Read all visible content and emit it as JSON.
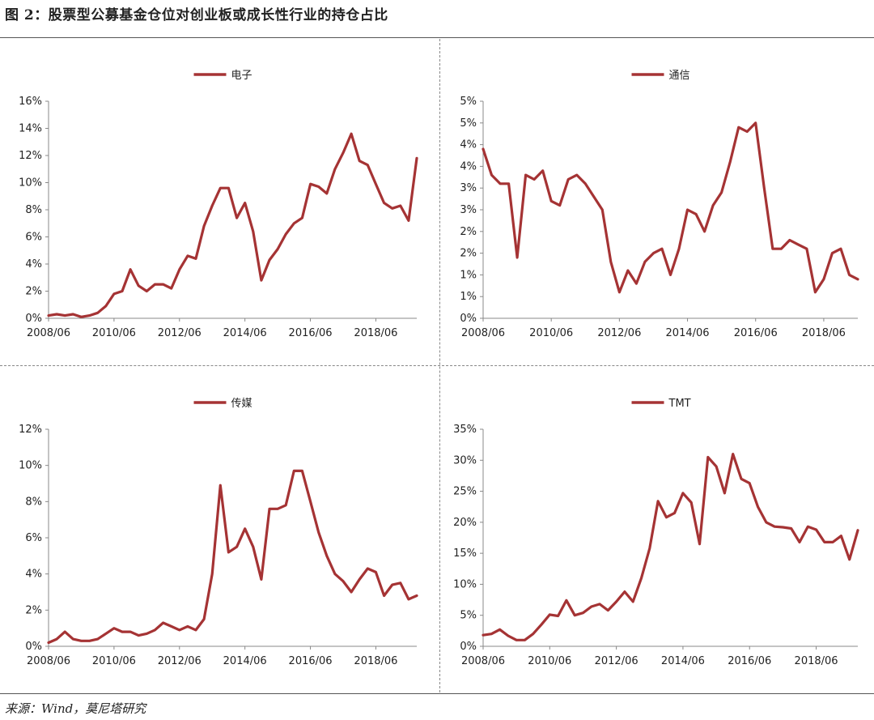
{
  "figure": {
    "title": "图 2：股票型公募基金仓位对创业板或成长性行业的持仓占比",
    "source": "来源：Wind，莫尼塔研究"
  },
  "colors": {
    "line": "#a53334",
    "axis": "#888888"
  },
  "chart_data": [
    {
      "type": "line",
      "title": "",
      "series": [
        {
          "name": "电子",
          "values": [
            0.2,
            0.3,
            0.2,
            0.3,
            0.1,
            0.2,
            0.4,
            0.9,
            1.8,
            2.0,
            3.6,
            2.4,
            2.0,
            2.5,
            2.5,
            2.2,
            3.6,
            4.6,
            4.4,
            6.8,
            8.3,
            9.6,
            9.6,
            7.4,
            8.5,
            6.4,
            2.8,
            4.3,
            5.1,
            6.2,
            7.0,
            7.4,
            9.9,
            9.7,
            9.2,
            11.0,
            12.2,
            13.6,
            11.6,
            11.3,
            9.9,
            8.5,
            8.1,
            8.3,
            7.2,
            11.8
          ]
        }
      ],
      "x": [
        "2008/06",
        "2008/09",
        "2008/12",
        "2009/03",
        "2009/06",
        "2009/09",
        "2009/12",
        "2010/03",
        "2010/06",
        "2010/09",
        "2010/12",
        "2011/03",
        "2011/06",
        "2011/09",
        "2011/12",
        "2012/03",
        "2012/06",
        "2012/09",
        "2012/12",
        "2013/03",
        "2013/06",
        "2013/09",
        "2013/12",
        "2014/03",
        "2014/06",
        "2014/09",
        "2014/12",
        "2015/03",
        "2015/06",
        "2015/09",
        "2015/12",
        "2016/03",
        "2016/06",
        "2016/09",
        "2016/12",
        "2017/03",
        "2017/06",
        "2017/09",
        "2017/12",
        "2018/03",
        "2018/06",
        "2018/09",
        "2018/12",
        "2019/03",
        "2019/06",
        "2019/09"
      ],
      "tick_labels": [
        "2008/06",
        "2010/06",
        "2012/06",
        "2014/06",
        "2016/06",
        "2018/06"
      ],
      "y_ticks": [
        "0%",
        "2%",
        "4%",
        "6%",
        "8%",
        "10%",
        "12%",
        "14%",
        "16%"
      ],
      "ylim": [
        0,
        16
      ],
      "legend": "top-center",
      "xlabel": "",
      "ylabel": ""
    },
    {
      "type": "line",
      "title": "",
      "series": [
        {
          "name": "通信",
          "values": [
            3.9,
            3.3,
            3.1,
            3.1,
            1.4,
            3.3,
            3.2,
            3.4,
            2.7,
            2.6,
            3.2,
            3.3,
            3.1,
            2.8,
            2.5,
            1.3,
            0.6,
            1.1,
            0.8,
            1.3,
            1.5,
            1.6,
            1.0,
            1.6,
            2.5,
            2.4,
            2.0,
            2.6,
            2.9,
            3.6,
            4.4,
            4.3,
            4.5,
            3.0,
            1.6,
            1.6,
            1.8,
            1.7,
            1.6,
            0.6,
            0.9,
            1.5,
            1.6,
            1.0,
            0.9
          ]
        }
      ],
      "x": [
        "2008/06",
        "2008/09",
        "2008/12",
        "2009/03",
        "2009/06",
        "2009/09",
        "2009/12",
        "2010/03",
        "2010/06",
        "2010/09",
        "2010/12",
        "2011/03",
        "2011/06",
        "2011/09",
        "2011/12",
        "2012/03",
        "2012/06",
        "2012/09",
        "2012/12",
        "2013/03",
        "2013/06",
        "2013/09",
        "2013/12",
        "2014/03",
        "2014/06",
        "2014/09",
        "2014/12",
        "2015/03",
        "2015/06",
        "2015/09",
        "2015/12",
        "2016/03",
        "2016/06",
        "2016/09",
        "2016/12",
        "2017/03",
        "2017/06",
        "2017/09",
        "2017/12",
        "2018/03",
        "2018/06",
        "2018/09",
        "2018/12",
        "2019/03",
        "2019/06"
      ],
      "tick_labels": [
        "2008/06",
        "2010/06",
        "2012/06",
        "2014/06",
        "2016/06",
        "2018/06"
      ],
      "y_ticks": [
        "0%",
        "1%",
        "1%",
        "2%",
        "2%",
        "3%",
        "3%",
        "4%",
        "4%",
        "5%",
        "5%"
      ],
      "ylim": [
        0,
        5
      ],
      "legend": "top-center",
      "xlabel": "",
      "ylabel": ""
    },
    {
      "type": "line",
      "title": "",
      "series": [
        {
          "name": "传媒",
          "values": [
            0.2,
            0.4,
            0.8,
            0.4,
            0.3,
            0.3,
            0.4,
            0.7,
            1.0,
            0.8,
            0.8,
            0.6,
            0.7,
            0.9,
            1.3,
            1.1,
            0.9,
            1.1,
            0.9,
            1.5,
            4.0,
            8.9,
            5.2,
            5.5,
            6.5,
            5.5,
            3.7,
            7.6,
            7.6,
            7.8,
            9.7,
            9.7,
            8.0,
            6.3,
            5.0,
            4.0,
            3.6,
            3.0,
            3.7,
            4.3,
            4.1,
            2.8,
            3.4,
            3.5,
            2.6,
            2.8
          ]
        }
      ],
      "x": [
        "2008/06",
        "2008/09",
        "2008/12",
        "2009/03",
        "2009/06",
        "2009/09",
        "2009/12",
        "2010/03",
        "2010/06",
        "2010/09",
        "2010/12",
        "2011/03",
        "2011/06",
        "2011/09",
        "2011/12",
        "2012/03",
        "2012/06",
        "2012/09",
        "2012/12",
        "2013/03",
        "2013/06",
        "2013/09",
        "2013/12",
        "2014/03",
        "2014/06",
        "2014/09",
        "2014/12",
        "2015/03",
        "2015/06",
        "2015/09",
        "2015/12",
        "2016/03",
        "2016/06",
        "2016/09",
        "2016/12",
        "2017/03",
        "2017/06",
        "2017/09",
        "2017/12",
        "2018/03",
        "2018/06",
        "2018/09",
        "2018/12",
        "2019/03",
        "2019/06",
        "2019/09"
      ],
      "tick_labels": [
        "2008/06",
        "2010/06",
        "2012/06",
        "2014/06",
        "2016/06",
        "2018/06"
      ],
      "y_ticks": [
        "0%",
        "2%",
        "4%",
        "6%",
        "8%",
        "10%",
        "12%"
      ],
      "ylim": [
        0,
        12
      ],
      "legend": "top-center",
      "xlabel": "",
      "ylabel": ""
    },
    {
      "type": "line",
      "title": "",
      "series": [
        {
          "name": "TMT",
          "values": [
            1.8,
            2.0,
            2.7,
            1.7,
            1.0,
            1.0,
            2.0,
            3.5,
            5.1,
            4.9,
            7.4,
            5.0,
            5.4,
            6.4,
            6.8,
            5.8,
            7.2,
            8.8,
            7.2,
            11.0,
            15.8,
            23.4,
            20.8,
            21.5,
            24.7,
            23.2,
            16.5,
            30.5,
            29.0,
            24.7,
            31.0,
            27.0,
            26.3,
            22.5,
            20.0,
            19.3,
            19.2,
            19.0,
            16.8,
            19.3,
            18.8,
            16.8,
            16.8,
            17.8,
            14.0,
            18.7
          ]
        }
      ],
      "x": [
        "2008/06",
        "2008/09",
        "2008/12",
        "2009/03",
        "2009/06",
        "2009/09",
        "2009/12",
        "2010/03",
        "2010/06",
        "2010/09",
        "2010/12",
        "2011/03",
        "2011/06",
        "2011/09",
        "2011/12",
        "2012/03",
        "2012/06",
        "2012/09",
        "2012/12",
        "2013/03",
        "2013/06",
        "2013/09",
        "2013/12",
        "2014/03",
        "2014/06",
        "2014/09",
        "2014/12",
        "2015/03",
        "2015/06",
        "2015/09",
        "2015/12",
        "2016/03",
        "2016/06",
        "2016/09",
        "2016/12",
        "2017/03",
        "2017/06",
        "2017/09",
        "2017/12",
        "2018/03",
        "2018/06",
        "2018/09",
        "2018/12",
        "2019/03",
        "2019/06",
        "2019/09"
      ],
      "tick_labels": [
        "2008/06",
        "2010/06",
        "2012/06",
        "2014/06",
        "2016/06",
        "2018/06"
      ],
      "y_ticks": [
        "0%",
        "5%",
        "10%",
        "15%",
        "20%",
        "25%",
        "30%",
        "35%"
      ],
      "ylim": [
        0,
        35
      ],
      "legend": "top-center",
      "xlabel": "",
      "ylabel": ""
    }
  ]
}
